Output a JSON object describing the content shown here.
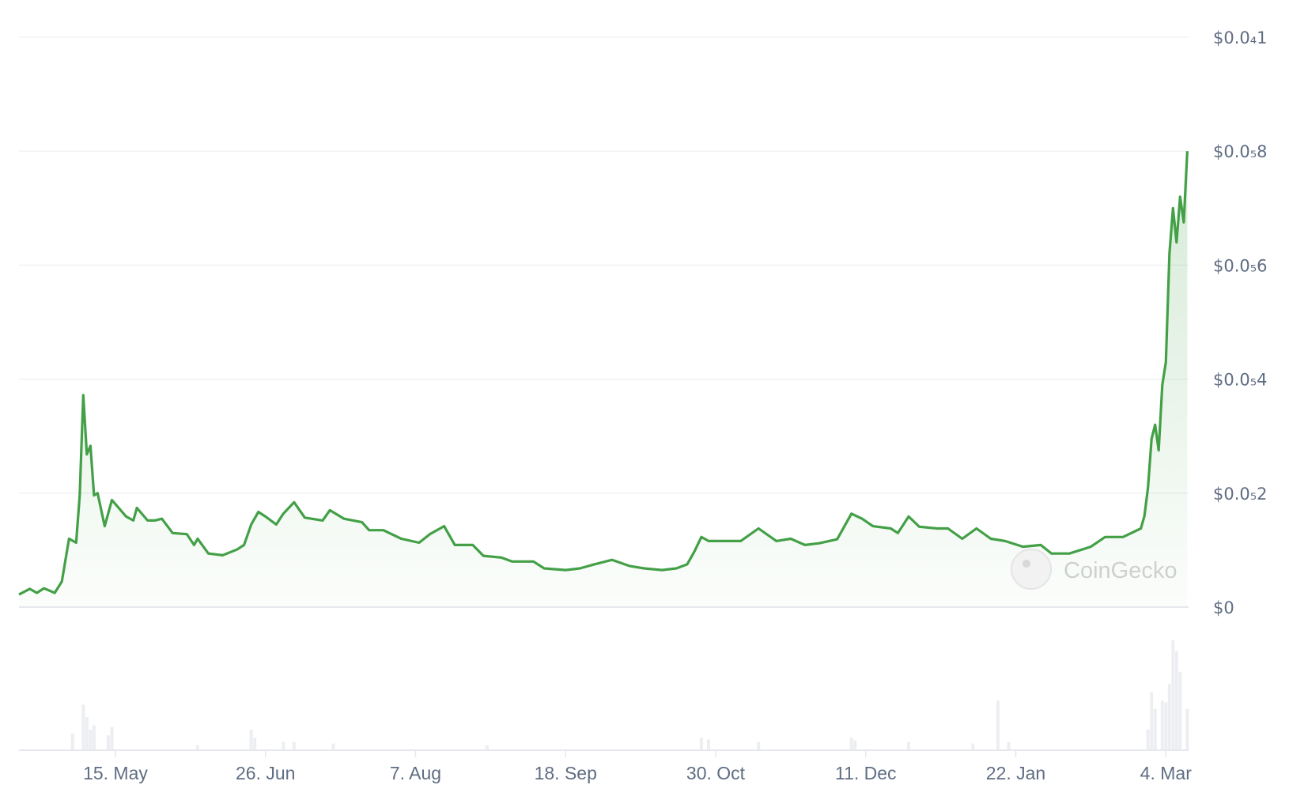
{
  "chart_data": {
    "type": "area",
    "title": "",
    "xlabel": "",
    "ylabel": "",
    "line_color": "#43a047",
    "grid": true,
    "y_axis_position": "right",
    "ylim": [
      0,
      1e-05
    ],
    "y_ticks": [
      {
        "value": 0,
        "label": "$0"
      },
      {
        "value": 2e-06,
        "label": "$0.0₅2"
      },
      {
        "value": 4e-06,
        "label": "$0.0₅4"
      },
      {
        "value": 6e-06,
        "label": "$0.0₅6"
      },
      {
        "value": 8e-06,
        "label": "$0.0₅8"
      },
      {
        "value": 1e-05,
        "label": "$0.0₄1"
      }
    ],
    "x_ticks": [
      "15. May",
      "26. Jun",
      "7. Aug",
      "18. Sep",
      "30. Oct",
      "11. Dec",
      "22. Jan",
      "4. Mar"
    ],
    "x_range": [
      "18. Apr",
      "10. Mar"
    ],
    "price_unit": "$ (×0.000001)",
    "price_series": [
      [
        "18. Apr",
        0.22
      ],
      [
        "21. Apr",
        0.32
      ],
      [
        "23. Apr",
        0.25
      ],
      [
        "25. Apr",
        0.33
      ],
      [
        "28. Apr",
        0.25
      ],
      [
        "30. Apr",
        0.45
      ],
      [
        "2. May",
        1.2
      ],
      [
        "4. May",
        1.13
      ],
      [
        "5. May",
        1.96
      ],
      [
        "6. May",
        3.72
      ],
      [
        "7. May",
        2.68
      ],
      [
        "8. May",
        2.83
      ],
      [
        "9. May",
        1.96
      ],
      [
        "10. May",
        2.0
      ],
      [
        "12. May",
        1.42
      ],
      [
        "14. May",
        1.88
      ],
      [
        "18. May",
        1.59
      ],
      [
        "20. May",
        1.52
      ],
      [
        "21. May",
        1.74
      ],
      [
        "24. May",
        1.52
      ],
      [
        "26. May",
        1.52
      ],
      [
        "28. May",
        1.55
      ],
      [
        "31. May",
        1.3
      ],
      [
        "4. Jun",
        1.28
      ],
      [
        "6. Jun",
        1.09
      ],
      [
        "7. Jun",
        1.2
      ],
      [
        "10. Jun",
        0.94
      ],
      [
        "14. Jun",
        0.91
      ],
      [
        "18. Jun",
        1.01
      ],
      [
        "20. Jun",
        1.09
      ],
      [
        "22. Jun",
        1.45
      ],
      [
        "24. Jun",
        1.67
      ],
      [
        "26. Jun",
        1.59
      ],
      [
        "29. Jun",
        1.45
      ],
      [
        "1. Jul",
        1.64
      ],
      [
        "4. Jul",
        1.84
      ],
      [
        "7. Jul",
        1.57
      ],
      [
        "12. Jul",
        1.52
      ],
      [
        "14. Jul",
        1.7
      ],
      [
        "18. Jul",
        1.55
      ],
      [
        "23. Jul",
        1.49
      ],
      [
        "25. Jul",
        1.35
      ],
      [
        "29. Jul",
        1.35
      ],
      [
        "3. Aug",
        1.2
      ],
      [
        "8. Aug",
        1.13
      ],
      [
        "11. Aug",
        1.28
      ],
      [
        "15. Aug",
        1.42
      ],
      [
        "18. Aug",
        1.09
      ],
      [
        "23. Aug",
        1.09
      ],
      [
        "26. Aug",
        0.9
      ],
      [
        "31. Aug",
        0.87
      ],
      [
        "3. Sep",
        0.8
      ],
      [
        "9. Sep",
        0.8
      ],
      [
        "12. Sep",
        0.68
      ],
      [
        "18. Sep",
        0.65
      ],
      [
        "22. Sep",
        0.68
      ],
      [
        "26. Sep",
        0.75
      ],
      [
        "1. Oct",
        0.83
      ],
      [
        "6. Oct",
        0.72
      ],
      [
        "10. Oct",
        0.68
      ],
      [
        "15. Oct",
        0.65
      ],
      [
        "19. Oct",
        0.68
      ],
      [
        "22. Oct",
        0.75
      ],
      [
        "24. Oct",
        0.97
      ],
      [
        "26. Oct",
        1.23
      ],
      [
        "28. Oct",
        1.16
      ],
      [
        "2. Nov",
        1.16
      ],
      [
        "6. Nov",
        1.16
      ],
      [
        "11. Nov",
        1.38
      ],
      [
        "16. Nov",
        1.16
      ],
      [
        "20. Nov",
        1.2
      ],
      [
        "24. Nov",
        1.09
      ],
      [
        "28. Nov",
        1.12
      ],
      [
        "3. Dec",
        1.19
      ],
      [
        "7. Dec",
        1.64
      ],
      [
        "10. Dec",
        1.55
      ],
      [
        "13. Dec",
        1.42
      ],
      [
        "18. Dec",
        1.38
      ],
      [
        "20. Dec",
        1.3
      ],
      [
        "23. Dec",
        1.59
      ],
      [
        "26. Dec",
        1.41
      ],
      [
        "31. Dec",
        1.38
      ],
      [
        "3. Jan",
        1.38
      ],
      [
        "7. Jan",
        1.2
      ],
      [
        "11. Jan",
        1.38
      ],
      [
        "15. Jan",
        1.2
      ],
      [
        "19. Jan",
        1.16
      ],
      [
        "24. Jan",
        1.06
      ],
      [
        "29. Jan",
        1.09
      ],
      [
        "1. Feb",
        0.94
      ],
      [
        "6. Feb",
        0.94
      ],
      [
        "12. Feb",
        1.06
      ],
      [
        "16. Feb",
        1.23
      ],
      [
        "21. Feb",
        1.23
      ],
      [
        "26. Feb",
        1.38
      ],
      [
        "27. Feb",
        1.6
      ],
      [
        "28. Feb",
        2.1
      ],
      [
        "29. Feb",
        2.95
      ],
      [
        "1. Mar",
        3.2
      ],
      [
        "2. Mar",
        2.75
      ],
      [
        "3. Mar",
        3.9
      ],
      [
        "4. Mar",
        4.3
      ],
      [
        "5. Mar",
        6.2
      ],
      [
        "6. Mar",
        7.0
      ],
      [
        "7. Mar",
        6.4
      ],
      [
        "8. Mar",
        7.2
      ],
      [
        "9. Mar",
        6.75
      ],
      [
        "10. Mar",
        8.0
      ]
    ],
    "volume_color": "#eceef2",
    "volume_relative": [
      [
        "3. May",
        20
      ],
      [
        "6. May",
        55
      ],
      [
        "7. May",
        40
      ],
      [
        "8. May",
        25
      ],
      [
        "9. May",
        30
      ],
      [
        "13. May",
        18
      ],
      [
        "14. May",
        28
      ],
      [
        "7. Jun",
        6
      ],
      [
        "22. Jun",
        25
      ],
      [
        "23. Jun",
        15
      ],
      [
        "1. Jul",
        10
      ],
      [
        "4. Jul",
        10
      ],
      [
        "15. Jul",
        8
      ],
      [
        "27. Aug",
        6
      ],
      [
        "26. Oct",
        15
      ],
      [
        "28. Oct",
        13
      ],
      [
        "11. Nov",
        10
      ],
      [
        "7. Dec",
        15
      ],
      [
        "8. Dec",
        12
      ],
      [
        "23. Dec",
        10
      ],
      [
        "10. Jan",
        8
      ],
      [
        "17. Jan",
        60
      ],
      [
        "20. Jan",
        10
      ],
      [
        "28. Feb",
        25
      ],
      [
        "29. Feb",
        70
      ],
      [
        "1. Mar",
        50
      ],
      [
        "3. Mar",
        60
      ],
      [
        "4. Mar",
        58
      ],
      [
        "5. Mar",
        80
      ],
      [
        "6. Mar",
        133
      ],
      [
        "7. Mar",
        120
      ],
      [
        "8. Mar",
        95
      ],
      [
        "10. Mar",
        50
      ]
    ]
  },
  "watermark": {
    "text": "CoinGecko"
  }
}
